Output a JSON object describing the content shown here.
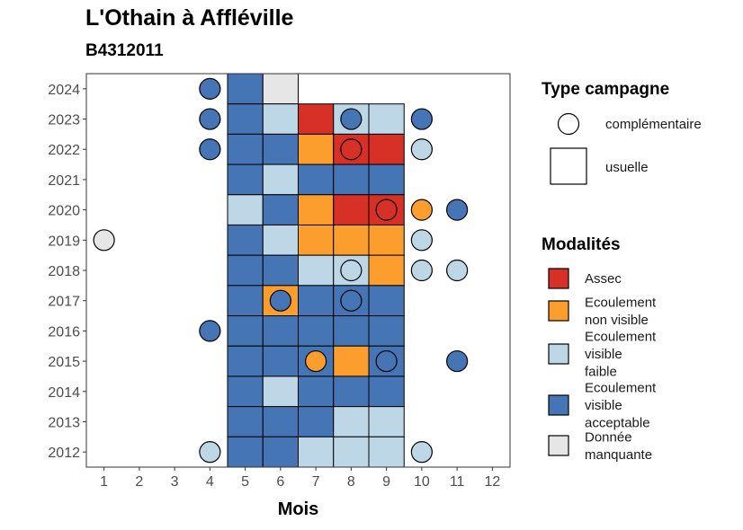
{
  "title": "L'Othain à Affléville",
  "subtitle": "B4312011",
  "chart_data": {
    "type": "heatmap",
    "xlabel": "Mois",
    "ylabel": "",
    "x_ticks": [
      1,
      2,
      3,
      4,
      5,
      6,
      7,
      8,
      9,
      10,
      11,
      12
    ],
    "y_ticks": [
      2012,
      2013,
      2014,
      2015,
      2016,
      2017,
      2018,
      2019,
      2020,
      2021,
      2022,
      2023,
      2024
    ],
    "xlim": [
      0.5,
      12.5
    ],
    "ylim": [
      2011.5,
      2024.5
    ],
    "grid": false,
    "colors": {
      "Assec": "#d73027",
      "Ecoulement non visible": "#fc9e2d",
      "Ecoulement visible faible": "#bdd7e7",
      "Ecoulement visible acceptable": "#4575b4",
      "Donnée manquante": "#e6e6e6"
    },
    "usuelle": [
      {
        "year": 2024,
        "month": 5,
        "status": "Ecoulement visible acceptable"
      },
      {
        "year": 2024,
        "month": 6,
        "status": "Donnée manquante"
      },
      {
        "year": 2023,
        "month": 5,
        "status": "Ecoulement visible acceptable"
      },
      {
        "year": 2023,
        "month": 6,
        "status": "Ecoulement visible faible"
      },
      {
        "year": 2023,
        "month": 7,
        "status": "Assec"
      },
      {
        "year": 2023,
        "month": 8,
        "status": "Ecoulement visible faible"
      },
      {
        "year": 2023,
        "month": 9,
        "status": "Ecoulement visible faible"
      },
      {
        "year": 2022,
        "month": 5,
        "status": "Ecoulement visible acceptable"
      },
      {
        "year": 2022,
        "month": 6,
        "status": "Ecoulement visible acceptable"
      },
      {
        "year": 2022,
        "month": 7,
        "status": "Ecoulement non visible"
      },
      {
        "year": 2022,
        "month": 8,
        "status": "Assec"
      },
      {
        "year": 2022,
        "month": 9,
        "status": "Assec"
      },
      {
        "year": 2021,
        "month": 5,
        "status": "Ecoulement visible acceptable"
      },
      {
        "year": 2021,
        "month": 6,
        "status": "Ecoulement visible faible"
      },
      {
        "year": 2021,
        "month": 7,
        "status": "Ecoulement visible acceptable"
      },
      {
        "year": 2021,
        "month": 8,
        "status": "Ecoulement visible acceptable"
      },
      {
        "year": 2021,
        "month": 9,
        "status": "Ecoulement visible acceptable"
      },
      {
        "year": 2020,
        "month": 5,
        "status": "Ecoulement visible faible"
      },
      {
        "year": 2020,
        "month": 6,
        "status": "Ecoulement visible acceptable"
      },
      {
        "year": 2020,
        "month": 7,
        "status": "Ecoulement non visible"
      },
      {
        "year": 2020,
        "month": 8,
        "status": "Assec"
      },
      {
        "year": 2020,
        "month": 9,
        "status": "Assec"
      },
      {
        "year": 2019,
        "month": 5,
        "status": "Ecoulement visible acceptable"
      },
      {
        "year": 2019,
        "month": 6,
        "status": "Ecoulement visible faible"
      },
      {
        "year": 2019,
        "month": 7,
        "status": "Ecoulement non visible"
      },
      {
        "year": 2019,
        "month": 8,
        "status": "Ecoulement non visible"
      },
      {
        "year": 2019,
        "month": 9,
        "status": "Ecoulement non visible"
      },
      {
        "year": 2018,
        "month": 5,
        "status": "Ecoulement visible acceptable"
      },
      {
        "year": 2018,
        "month": 6,
        "status": "Ecoulement visible acceptable"
      },
      {
        "year": 2018,
        "month": 7,
        "status": "Ecoulement visible faible"
      },
      {
        "year": 2018,
        "month": 8,
        "status": "Ecoulement visible faible"
      },
      {
        "year": 2018,
        "month": 9,
        "status": "Ecoulement non visible"
      },
      {
        "year": 2017,
        "month": 5,
        "status": "Ecoulement visible acceptable"
      },
      {
        "year": 2017,
        "month": 6,
        "status": "Ecoulement non visible"
      },
      {
        "year": 2017,
        "month": 7,
        "status": "Ecoulement visible acceptable"
      },
      {
        "year": 2017,
        "month": 8,
        "status": "Ecoulement visible acceptable"
      },
      {
        "year": 2017,
        "month": 9,
        "status": "Ecoulement visible acceptable"
      },
      {
        "year": 2016,
        "month": 5,
        "status": "Ecoulement visible acceptable"
      },
      {
        "year": 2016,
        "month": 6,
        "status": "Ecoulement visible acceptable"
      },
      {
        "year": 2016,
        "month": 7,
        "status": "Ecoulement visible acceptable"
      },
      {
        "year": 2016,
        "month": 8,
        "status": "Ecoulement visible acceptable"
      },
      {
        "year": 2016,
        "month": 9,
        "status": "Ecoulement visible acceptable"
      },
      {
        "year": 2015,
        "month": 5,
        "status": "Ecoulement visible acceptable"
      },
      {
        "year": 2015,
        "month": 6,
        "status": "Ecoulement visible acceptable"
      },
      {
        "year": 2015,
        "month": 7,
        "status": "Ecoulement visible acceptable"
      },
      {
        "year": 2015,
        "month": 8,
        "status": "Ecoulement non visible"
      },
      {
        "year": 2015,
        "month": 9,
        "status": "Ecoulement visible acceptable"
      },
      {
        "year": 2014,
        "month": 5,
        "status": "Ecoulement visible acceptable"
      },
      {
        "year": 2014,
        "month": 6,
        "status": "Ecoulement visible faible"
      },
      {
        "year": 2014,
        "month": 7,
        "status": "Ecoulement visible acceptable"
      },
      {
        "year": 2014,
        "month": 8,
        "status": "Ecoulement visible acceptable"
      },
      {
        "year": 2014,
        "month": 9,
        "status": "Ecoulement visible acceptable"
      },
      {
        "year": 2013,
        "month": 5,
        "status": "Ecoulement visible acceptable"
      },
      {
        "year": 2013,
        "month": 6,
        "status": "Ecoulement visible acceptable"
      },
      {
        "year": 2013,
        "month": 7,
        "status": "Ecoulement visible acceptable"
      },
      {
        "year": 2013,
        "month": 8,
        "status": "Ecoulement visible faible"
      },
      {
        "year": 2013,
        "month": 9,
        "status": "Ecoulement visible faible"
      },
      {
        "year": 2012,
        "month": 5,
        "status": "Ecoulement visible acceptable"
      },
      {
        "year": 2012,
        "month": 6,
        "status": "Ecoulement visible acceptable"
      },
      {
        "year": 2012,
        "month": 7,
        "status": "Ecoulement visible faible"
      },
      {
        "year": 2012,
        "month": 8,
        "status": "Ecoulement visible faible"
      },
      {
        "year": 2012,
        "month": 9,
        "status": "Ecoulement visible faible"
      }
    ],
    "complementaire": [
      {
        "year": 2024,
        "month": 4,
        "status": "Ecoulement visible acceptable"
      },
      {
        "year": 2023,
        "month": 4,
        "status": "Ecoulement visible acceptable"
      },
      {
        "year": 2023,
        "month": 8,
        "status": "Ecoulement visible acceptable"
      },
      {
        "year": 2023,
        "month": 10,
        "status": "Ecoulement visible acceptable"
      },
      {
        "year": 2022,
        "month": 4,
        "status": "Ecoulement visible acceptable"
      },
      {
        "year": 2022,
        "month": 8,
        "status": "Assec"
      },
      {
        "year": 2022,
        "month": 10,
        "status": "Ecoulement visible faible"
      },
      {
        "year": 2020,
        "month": 9,
        "status": "Assec"
      },
      {
        "year": 2020,
        "month": 10,
        "status": "Ecoulement non visible"
      },
      {
        "year": 2020,
        "month": 11,
        "status": "Ecoulement visible acceptable"
      },
      {
        "year": 2019,
        "month": 1,
        "status": "Donnée manquante"
      },
      {
        "year": 2019,
        "month": 10,
        "status": "Ecoulement visible faible"
      },
      {
        "year": 2018,
        "month": 8,
        "status": "Ecoulement visible faible"
      },
      {
        "year": 2018,
        "month": 10,
        "status": "Ecoulement visible faible"
      },
      {
        "year": 2018,
        "month": 11,
        "status": "Ecoulement visible faible"
      },
      {
        "year": 2017,
        "month": 6,
        "status": "Ecoulement visible acceptable"
      },
      {
        "year": 2017,
        "month": 8,
        "status": "Ecoulement visible acceptable"
      },
      {
        "year": 2016,
        "month": 4,
        "status": "Ecoulement visible acceptable"
      },
      {
        "year": 2015,
        "month": 7,
        "status": "Ecoulement non visible"
      },
      {
        "year": 2015,
        "month": 9,
        "status": "Ecoulement visible acceptable"
      },
      {
        "year": 2015,
        "month": 11,
        "status": "Ecoulement visible acceptable"
      },
      {
        "year": 2012,
        "month": 4,
        "status": "Ecoulement visible faible"
      },
      {
        "year": 2012,
        "month": 10,
        "status": "Ecoulement visible faible"
      }
    ],
    "legend_campagne": {
      "title": "Type campagne",
      "items": [
        "complémentaire",
        "usuelle"
      ]
    },
    "legend_modalites": {
      "title": "Modalités",
      "items": [
        {
          "label_lines": [
            "Assec"
          ],
          "status": "Assec"
        },
        {
          "label_lines": [
            "Ecoulement",
            "non visible"
          ],
          "status": "Ecoulement non visible"
        },
        {
          "label_lines": [
            "Ecoulement",
            "visible",
            "faible"
          ],
          "status": "Ecoulement visible faible"
        },
        {
          "label_lines": [
            "Ecoulement",
            "visible",
            "acceptable"
          ],
          "status": "Ecoulement visible acceptable"
        },
        {
          "label_lines": [
            "Donnée",
            "manquante"
          ],
          "status": "Donnée manquante"
        }
      ]
    },
    "legend_placement": "right"
  }
}
